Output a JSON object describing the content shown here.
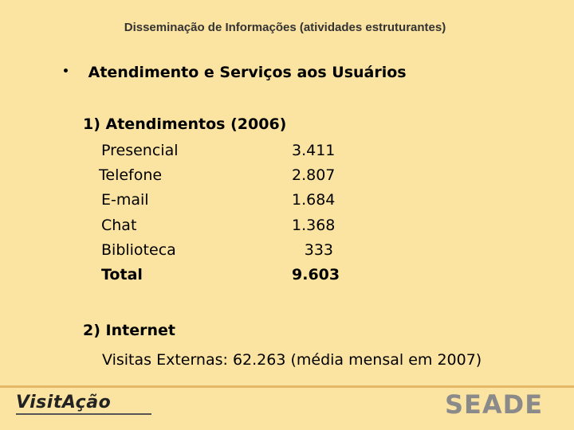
{
  "header": {
    "title": "Disseminação de Informações (atividades estruturantes)"
  },
  "bullet": {
    "text": "Atendimento e Serviços aos Usuários"
  },
  "section1": {
    "heading": "1) Atendimentos (2006)",
    "rows": [
      {
        "label": "Presencial",
        "value": "3.411"
      },
      {
        "label": "Telefone",
        "value": "2.807"
      },
      {
        "label": "E-mail",
        "value": "1.684"
      },
      {
        "label": "Chat",
        "value": "1.368"
      },
      {
        "label": "Biblioteca",
        "value": "333"
      }
    ],
    "total": {
      "label": "Total",
      "value": "9.603"
    }
  },
  "section2": {
    "heading": "2) Internet",
    "line": "Visitas Externas:  62.263 (média mensal em 2007)"
  },
  "footer": {
    "left_logo": "VisitAção",
    "right_logo": "SEADE"
  }
}
